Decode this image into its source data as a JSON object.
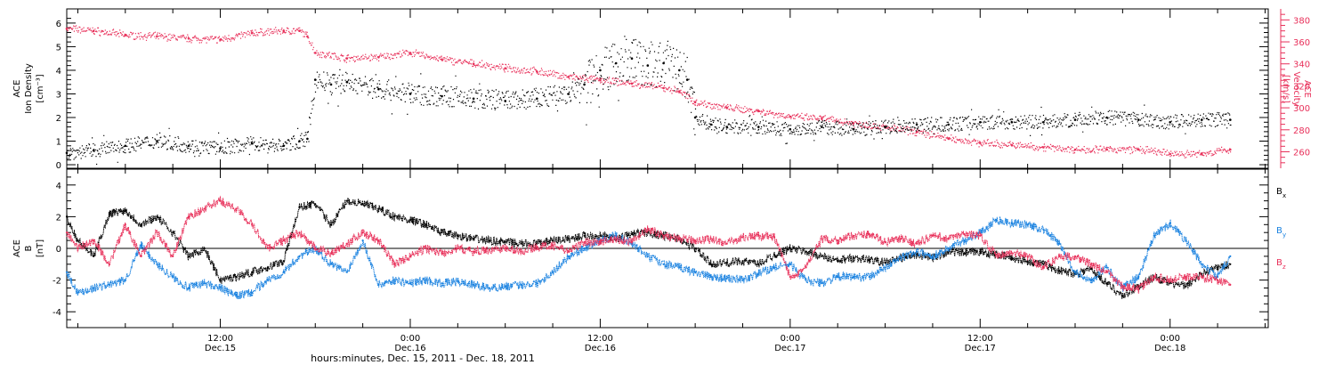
{
  "colors": {
    "density": "#000000",
    "velocity": "#e8305a",
    "bx": "#000000",
    "by": "#1a82e0",
    "bz": "#e8305a",
    "axis": "#000000"
  },
  "time_axis": {
    "caption": "hours:minutes, Dec. 15, 2011 - Dec. 18, 2011",
    "ticks": [
      {
        "hours": 12,
        "time": "12:00",
        "date": "Dec.15"
      },
      {
        "hours": 24,
        "time": "0:00",
        "date": "Dec.16"
      },
      {
        "hours": 36,
        "time": "12:00",
        "date": "Dec.16"
      },
      {
        "hours": 48,
        "time": "0:00",
        "date": "Dec.17"
      },
      {
        "hours": 60,
        "time": "12:00",
        "date": "Dec.17"
      },
      {
        "hours": 72,
        "time": "0:00",
        "date": "Dec.18"
      }
    ]
  },
  "chart_data": [
    {
      "type": "scatter",
      "panel": "top",
      "ylabel_left": [
        "ACE",
        "Ion Density",
        "[cm⁻³]"
      ],
      "ylabel_right": [
        "ACE",
        "Velocity",
        "[km/s]"
      ],
      "x_unit": "hours since Dec. 15, 2011 00:00",
      "xlim": [
        2.3,
        78.2
      ],
      "ylim": [
        -0.15,
        6.6
      ],
      "y2lim": [
        245,
        390
      ],
      "y_ticks": [
        0,
        1,
        2,
        3,
        4,
        5,
        6
      ],
      "y2_ticks": [
        260,
        280,
        300,
        320,
        340,
        360,
        380
      ],
      "series": [
        {
          "name": "Ion Density",
          "axis": "left",
          "x": [
            2.3,
            4,
            6,
            8,
            10,
            12,
            14,
            16,
            17,
            17.5,
            18,
            19,
            20,
            22,
            24,
            26,
            28,
            30,
            32,
            34,
            35,
            36,
            37,
            38,
            39,
            40,
            41,
            41.5,
            42,
            43,
            44,
            46,
            48,
            50,
            52,
            54,
            56,
            58,
            60,
            62,
            64,
            66,
            68,
            70,
            72,
            74,
            75.8
          ],
          "y": [
            0.5,
            0.6,
            0.8,
            1.0,
            0.8,
            0.7,
            0.9,
            0.8,
            1.0,
            1.1,
            3.6,
            3.4,
            3.5,
            3.2,
            3.0,
            2.9,
            2.8,
            2.7,
            2.8,
            3.0,
            3.4,
            4.0,
            4.3,
            4.5,
            4.2,
            4.3,
            4.0,
            3.6,
            2.0,
            1.7,
            1.6,
            1.6,
            1.5,
            1.6,
            1.5,
            1.6,
            1.7,
            1.7,
            1.8,
            1.8,
            1.8,
            1.9,
            2.0,
            1.9,
            1.8,
            1.9,
            1.9
          ]
        },
        {
          "name": "Velocity",
          "axis": "right",
          "x": [
            2.3,
            4,
            6,
            8,
            10,
            12,
            14,
            16,
            17,
            17.5,
            18,
            20,
            22,
            24,
            26,
            28,
            30,
            32,
            34,
            36,
            38,
            40,
            41,
            42,
            44,
            46,
            48,
            50,
            52,
            54,
            56,
            58,
            60,
            62,
            64,
            66,
            68,
            70,
            72,
            74,
            75.8
          ],
          "y": [
            372,
            370,
            366,
            365,
            363,
            362,
            368,
            370,
            370,
            365,
            350,
            345,
            346,
            350,
            344,
            340,
            336,
            333,
            328,
            325,
            322,
            318,
            315,
            305,
            300,
            297,
            292,
            290,
            286,
            282,
            278,
            272,
            268,
            266,
            264,
            262,
            262,
            262,
            258,
            258,
            262
          ]
        }
      ]
    },
    {
      "type": "line",
      "panel": "bottom",
      "ylabel_left": [
        "ACE",
        "B",
        "[nT]"
      ],
      "x_unit": "hours since Dec. 15, 2011 00:00",
      "xlim": [
        2.3,
        78.2
      ],
      "ylim": [
        -5,
        5
      ],
      "y_ticks": [
        -4,
        -2,
        0,
        2,
        4
      ],
      "series": [
        {
          "name": "Bx",
          "legend": [
            "B",
            "x"
          ],
          "x": [
            2.3,
            3,
            4,
            5,
            6,
            7,
            8,
            9,
            10,
            11,
            12,
            13,
            14,
            15,
            16,
            17,
            18,
            19,
            20,
            21,
            22,
            23,
            24,
            25,
            26,
            27,
            28,
            29,
            30,
            31,
            32,
            33,
            34,
            35,
            36,
            37,
            38,
            39,
            40,
            41,
            42,
            43,
            44,
            45,
            46,
            47,
            48,
            49,
            50,
            51,
            52,
            53,
            54,
            55,
            56,
            57,
            58,
            59,
            60,
            61,
            62,
            63,
            64,
            65,
            66,
            67,
            68,
            69,
            70,
            71,
            72,
            73,
            74,
            75,
            75.8
          ],
          "y": [
            2.0,
            0.5,
            -0.5,
            2.2,
            2.4,
            1.5,
            2.0,
            1.0,
            -0.5,
            0.0,
            -2.0,
            -1.8,
            -1.5,
            -1.2,
            -0.8,
            2.6,
            2.8,
            1.5,
            3.0,
            2.8,
            2.5,
            2.0,
            1.8,
            1.5,
            1.0,
            0.8,
            0.6,
            0.5,
            0.4,
            0.3,
            0.3,
            0.5,
            0.6,
            0.8,
            0.8,
            0.6,
            0.9,
            1.0,
            0.8,
            0.6,
            0.0,
            -1.0,
            -0.9,
            -0.8,
            -1.0,
            -0.4,
            0.0,
            -0.2,
            -0.5,
            -0.8,
            -0.6,
            -0.7,
            -0.9,
            -0.6,
            -0.4,
            -0.6,
            -0.2,
            -0.3,
            -0.2,
            -0.4,
            -0.6,
            -0.8,
            -1.0,
            -1.4,
            -1.6,
            -1.3,
            -2.2,
            -3.0,
            -2.4,
            -1.8,
            -2.2,
            -2.4,
            -1.6,
            -1.2,
            -1.0
          ]
        },
        {
          "name": "By",
          "legend": [
            "B",
            "y"
          ],
          "x": [
            2.3,
            3,
            4,
            5,
            6,
            7,
            8,
            9,
            10,
            11,
            12,
            13,
            14,
            15,
            16,
            17,
            18,
            19,
            20,
            21,
            22,
            23,
            24,
            25,
            26,
            27,
            28,
            29,
            30,
            31,
            32,
            33,
            34,
            35,
            36,
            37,
            38,
            39,
            40,
            41,
            42,
            43,
            44,
            45,
            46,
            47,
            48,
            49,
            50,
            51,
            52,
            53,
            54,
            55,
            56,
            57,
            58,
            59,
            60,
            61,
            62,
            63,
            64,
            65,
            66,
            67,
            68,
            69,
            70,
            71,
            72,
            73,
            74,
            75,
            75.8
          ],
          "y": [
            -1.5,
            -2.8,
            -2.5,
            -2.3,
            -2.0,
            0.2,
            -1.0,
            -1.8,
            -2.5,
            -2.2,
            -2.5,
            -3.0,
            -2.8,
            -2.0,
            -1.5,
            -0.5,
            0.0,
            -1.0,
            -1.5,
            0.5,
            -2.3,
            -2.0,
            -2.2,
            -2.0,
            -2.2,
            -2.1,
            -2.3,
            -2.5,
            -2.4,
            -2.3,
            -2.2,
            -1.5,
            -0.5,
            0.0,
            0.5,
            0.8,
            0.3,
            -0.5,
            -1.0,
            -1.2,
            -1.5,
            -1.8,
            -1.9,
            -2.0,
            -1.6,
            -1.2,
            -1.0,
            -2.0,
            -2.2,
            -1.8,
            -1.8,
            -1.8,
            -1.2,
            -0.6,
            -0.2,
            -0.5,
            0.0,
            0.5,
            1.0,
            1.8,
            1.6,
            1.5,
            1.2,
            0.3,
            -1.5,
            -2.0,
            -1.2,
            -2.5,
            -1.8,
            0.8,
            1.6,
            0.5,
            -1.0,
            -1.8,
            -0.5
          ]
        },
        {
          "name": "Bz",
          "legend": [
            "B",
            "z"
          ],
          "x": [
            2.3,
            3,
            4,
            5,
            6,
            7,
            8,
            9,
            10,
            11,
            12,
            13,
            14,
            15,
            16,
            17,
            18,
            19,
            20,
            21,
            22,
            23,
            24,
            25,
            26,
            27,
            28,
            29,
            30,
            31,
            32,
            33,
            34,
            35,
            36,
            37,
            38,
            39,
            40,
            41,
            42,
            43,
            44,
            45,
            46,
            47,
            48,
            49,
            50,
            51,
            52,
            53,
            54,
            55,
            56,
            57,
            58,
            59,
            60,
            61,
            62,
            63,
            64,
            65,
            66,
            67,
            68,
            69,
            70,
            71,
            72,
            73,
            74,
            75,
            75.8
          ],
          "y": [
            1.0,
            0.0,
            0.5,
            -1.0,
            1.5,
            -0.5,
            1.0,
            -0.5,
            2.0,
            2.5,
            3.0,
            2.5,
            1.5,
            0.0,
            0.5,
            1.0,
            0.0,
            -0.3,
            0.3,
            1.0,
            0.5,
            -1.0,
            -0.5,
            0.0,
            -0.3,
            0.0,
            -0.2,
            -0.1,
            0.0,
            -0.2,
            0.1,
            0.2,
            -0.2,
            0.4,
            0.4,
            0.6,
            0.4,
            1.2,
            0.8,
            0.6,
            0.5,
            0.6,
            0.3,
            0.7,
            0.8,
            0.7,
            -1.8,
            -1.2,
            0.6,
            0.5,
            0.8,
            0.9,
            0.4,
            0.6,
            0.3,
            0.8,
            0.6,
            0.9,
            0.8,
            -0.4,
            -0.3,
            -0.5,
            -1.2,
            -0.5,
            -0.5,
            -1.0,
            -1.5,
            -2.4,
            -2.6,
            -1.8,
            -2.0,
            -1.8,
            -1.8,
            -2.0,
            -2.3
          ]
        }
      ]
    }
  ]
}
